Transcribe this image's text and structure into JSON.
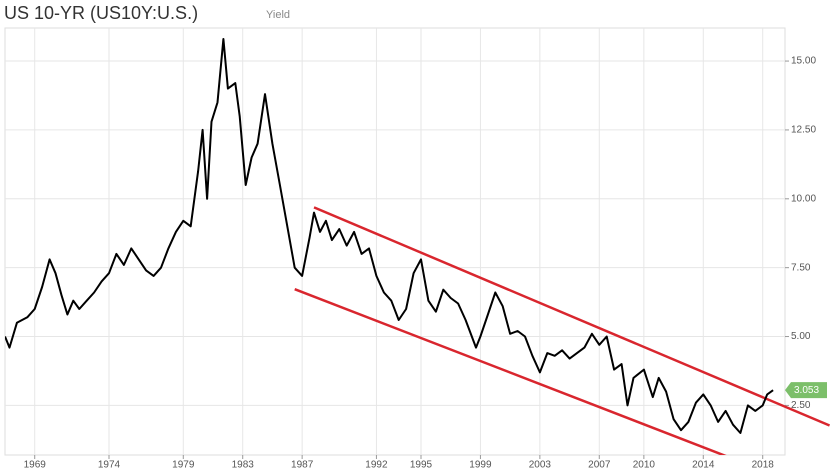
{
  "chart_data": {
    "type": "line",
    "title": "US 10-YR (US10Y:U.S.)",
    "subtitle": "Yield",
    "x": [
      1967,
      1967.3,
      1967.8,
      1968.5,
      1969,
      1969.5,
      1970,
      1970.4,
      1970.8,
      1971.2,
      1971.6,
      1972,
      1972.5,
      1973,
      1973.5,
      1974,
      1974.5,
      1975,
      1975.5,
      1976,
      1976.5,
      1977,
      1977.5,
      1978,
      1978.5,
      1979,
      1979.5,
      1980,
      1980.3,
      1980.6,
      1980.9,
      1981.3,
      1981.7,
      1982,
      1982.5,
      1982.8,
      1983.2,
      1983.6,
      1984,
      1984.5,
      1985,
      1985.5,
      1986,
      1986.5,
      1987,
      1987.5,
      1987.8,
      1988.2,
      1988.6,
      1989,
      1989.5,
      1990,
      1990.5,
      1991,
      1991.5,
      1992,
      1992.5,
      1993,
      1993.5,
      1994,
      1994.5,
      1995,
      1995.5,
      1996,
      1996.5,
      1997,
      1997.5,
      1998,
      1998.7,
      1999,
      1999.5,
      2000,
      2000.5,
      2001,
      2001.5,
      2002,
      2002.5,
      2003,
      2003.5,
      2004,
      2004.5,
      2005,
      2005.5,
      2006,
      2006.5,
      2007,
      2007.5,
      2008,
      2008.5,
      2008.9,
      2009.3,
      2010,
      2010.6,
      2011,
      2011.5,
      2012,
      2012.5,
      2013,
      2013.5,
      2014,
      2014.5,
      2015,
      2015.5,
      2016,
      2016.5,
      2017,
      2017.5,
      2018,
      2018.3,
      2018.7
    ],
    "series": [
      {
        "name": "US10Y",
        "color": "#000000",
        "values": [
          5.0,
          4.6,
          5.5,
          5.7,
          6.0,
          6.8,
          7.8,
          7.3,
          6.5,
          5.8,
          6.3,
          6.0,
          6.3,
          6.6,
          7.0,
          7.3,
          8.0,
          7.6,
          8.2,
          7.8,
          7.4,
          7.2,
          7.5,
          8.2,
          8.8,
          9.2,
          9.0,
          11.0,
          12.5,
          10.0,
          12.8,
          13.5,
          15.8,
          14.0,
          14.2,
          13.0,
          10.5,
          11.5,
          12.0,
          13.8,
          12.0,
          10.5,
          9.0,
          7.5,
          7.2,
          8.6,
          9.5,
          8.8,
          9.2,
          8.5,
          8.9,
          8.3,
          8.8,
          8.0,
          8.2,
          7.2,
          6.6,
          6.3,
          5.6,
          6.0,
          7.3,
          7.8,
          6.3,
          5.9,
          6.7,
          6.4,
          6.2,
          5.6,
          4.6,
          5.0,
          5.8,
          6.6,
          6.1,
          5.1,
          5.2,
          5.0,
          4.3,
          3.7,
          4.4,
          4.3,
          4.5,
          4.2,
          4.4,
          4.6,
          5.1,
          4.7,
          5.0,
          3.8,
          4.0,
          2.5,
          3.5,
          3.8,
          2.8,
          3.5,
          3.0,
          2.0,
          1.6,
          1.9,
          2.6,
          2.9,
          2.5,
          1.9,
          2.3,
          1.8,
          1.5,
          2.5,
          2.3,
          2.5,
          2.9,
          3.053
        ]
      }
    ],
    "trend_lines": [
      {
        "color": "#d9262e",
        "x": [
          1987.8,
          2022.5
        ],
        "values": [
          9.69,
          1.77
        ]
      },
      {
        "color": "#d9262e",
        "x": [
          1986.5,
          2016.3
        ],
        "values": [
          6.72,
          0.5
        ]
      }
    ],
    "xlim": [
      1967.0,
      2019.5
    ],
    "xticks": [
      1969,
      1974,
      1979,
      1983,
      1987,
      1992,
      1995,
      1999,
      2003,
      2007,
      2010,
      2014,
      2018
    ],
    "ylim": [
      0.7,
      16.2
    ],
    "yticks": [
      {
        "value": 2.5,
        "label": "2.50"
      },
      {
        "value": 5,
        "label": "5.00"
      },
      {
        "value": 7.5,
        "label": "7.50"
      },
      {
        "value": 10,
        "label": "10.00"
      },
      {
        "value": 12.5,
        "label": "12.50"
      },
      {
        "value": 15,
        "label": "15.00"
      }
    ],
    "grid": true
  }
}
